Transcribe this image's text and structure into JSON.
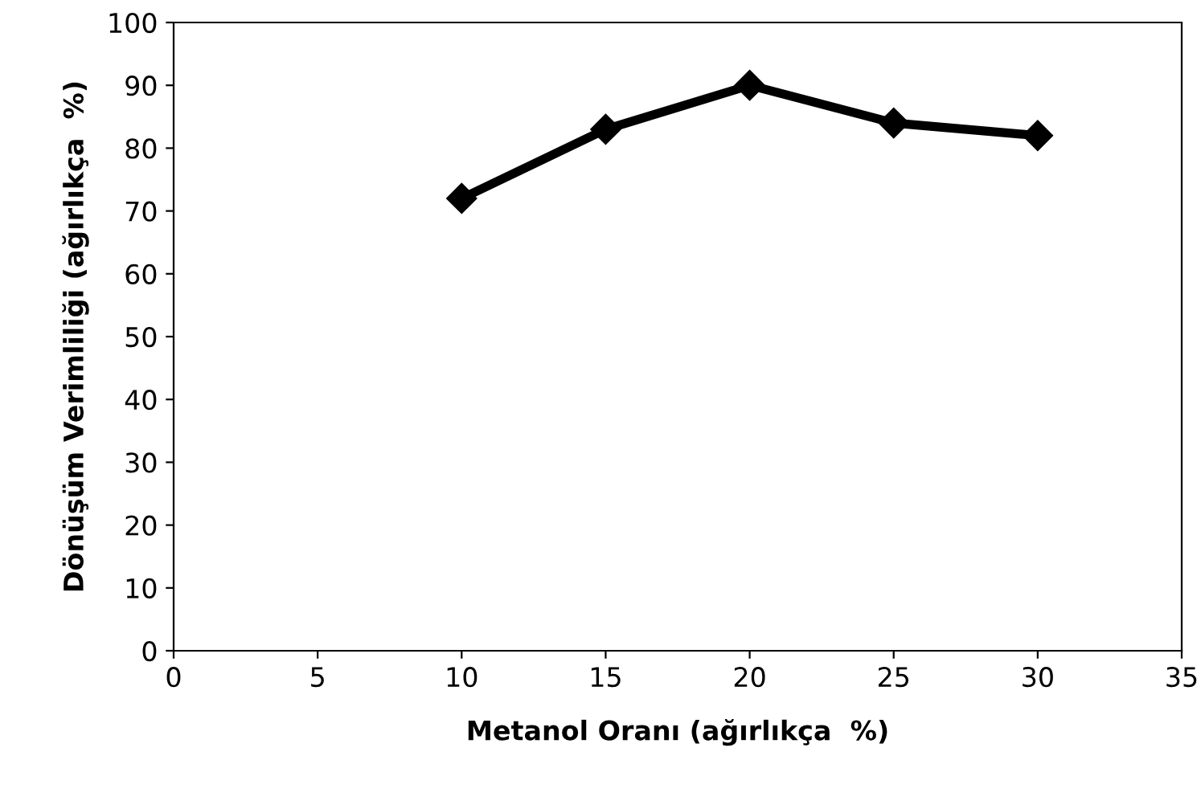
{
  "chart_data": {
    "type": "line",
    "xlabel": "Metanol Oranı (ağırlıkça  %)",
    "ylabel": "Dönüşüm Verimliliği (ağırlıkça  %)",
    "x": [
      10,
      15,
      20,
      25,
      30
    ],
    "series": [
      {
        "color": "#000000",
        "values": [
          72,
          83,
          90,
          84,
          82
        ]
      }
    ],
    "xlim": [
      0,
      35
    ],
    "xticks": [
      0,
      5,
      10,
      15,
      20,
      25,
      30,
      35
    ],
    "ylim": [
      0,
      100
    ],
    "yticks": [
      0,
      10,
      20,
      30,
      40,
      50,
      60,
      70,
      80,
      90,
      100
    ],
    "marker": "diamond",
    "line_style": "solid",
    "grid": false,
    "legend": false
  }
}
